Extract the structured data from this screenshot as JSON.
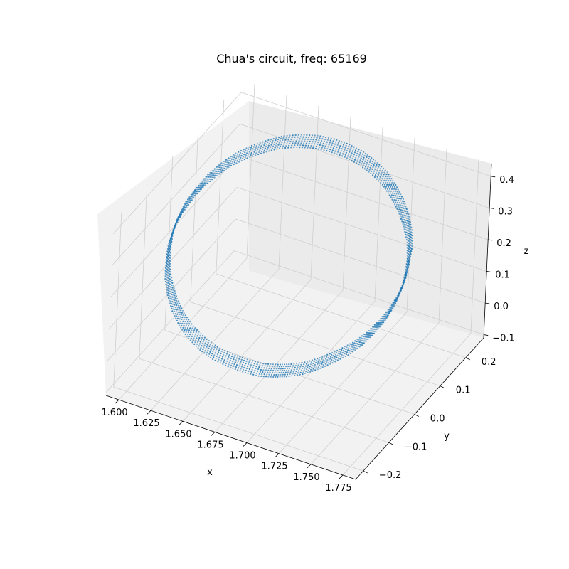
{
  "chart_data": {
    "type": "scatter",
    "projection": "3d",
    "title": "Chua's circuit, freq: 65169",
    "xlabel": "x",
    "ylabel": "y",
    "zlabel": "z",
    "x_ticks": [
      "1.600",
      "1.625",
      "1.650",
      "1.675",
      "1.700",
      "1.725",
      "1.750",
      "1.775"
    ],
    "y_ticks": [
      "−0.2",
      "−0.1",
      "0.0",
      "0.1",
      "0.2"
    ],
    "z_ticks": [
      "−0.1",
      "0.0",
      "0.1",
      "0.2",
      "0.3",
      "0.4"
    ],
    "xlim": [
      1.59,
      1.785
    ],
    "ylim": [
      -0.23,
      0.27
    ],
    "zlim": [
      -0.11,
      0.44
    ],
    "grid": true,
    "point_color": "#1f77b4",
    "series": [
      {
        "points": [
          [
            1.7,
            -0.185,
            0.08
          ],
          [
            1.712,
            -0.189,
            0.097
          ],
          [
            1.722,
            -0.188,
            0.111
          ],
          [
            1.733,
            -0.181,
            0.127
          ],
          [
            1.742,
            -0.168,
            0.143
          ],
          [
            1.75,
            -0.151,
            0.159
          ],
          [
            1.758,
            -0.131,
            0.177
          ],
          [
            1.764,
            -0.108,
            0.196
          ],
          [
            1.768,
            -0.082,
            0.215
          ],
          [
            1.771,
            -0.054,
            0.236
          ],
          [
            1.772,
            -0.025,
            0.257
          ],
          [
            1.771,
            0.005,
            0.277
          ],
          [
            1.768,
            0.034,
            0.297
          ],
          [
            1.764,
            0.063,
            0.316
          ],
          [
            1.758,
            0.091,
            0.334
          ],
          [
            1.75,
            0.117,
            0.35
          ],
          [
            1.741,
            0.14,
            0.365
          ],
          [
            1.731,
            0.16,
            0.378
          ],
          [
            1.721,
            0.177,
            0.389
          ],
          [
            1.709,
            0.19,
            0.397
          ],
          [
            1.698,
            0.198,
            0.403
          ],
          [
            1.686,
            0.203,
            0.406
          ],
          [
            1.674,
            0.203,
            0.407
          ],
          [
            1.662,
            0.199,
            0.405
          ],
          [
            1.651,
            0.191,
            0.4
          ],
          [
            1.64,
            0.179,
            0.392
          ],
          [
            1.631,
            0.163,
            0.381
          ],
          [
            1.622,
            0.144,
            0.368
          ],
          [
            1.614,
            0.122,
            0.353
          ],
          [
            1.608,
            0.097,
            0.336
          ],
          [
            1.603,
            0.07,
            0.317
          ],
          [
            1.6,
            0.042,
            0.297
          ],
          [
            1.598,
            0.012,
            0.276
          ],
          [
            1.598,
            -0.018,
            0.254
          ],
          [
            1.6,
            -0.047,
            0.232
          ],
          [
            1.604,
            -0.075,
            0.21
          ],
          [
            1.609,
            -0.101,
            0.188
          ],
          [
            1.616,
            -0.125,
            0.167
          ],
          [
            1.624,
            -0.146,
            0.147
          ],
          [
            1.633,
            -0.163,
            0.129
          ],
          [
            1.643,
            -0.176,
            0.113
          ],
          [
            1.654,
            -0.185,
            0.1
          ],
          [
            1.665,
            -0.19,
            0.09
          ],
          [
            1.677,
            -0.19,
            0.083
          ],
          [
            1.688,
            -0.188,
            0.08
          ],
          [
            1.7,
            -0.185,
            0.08
          ]
        ]
      }
    ]
  }
}
